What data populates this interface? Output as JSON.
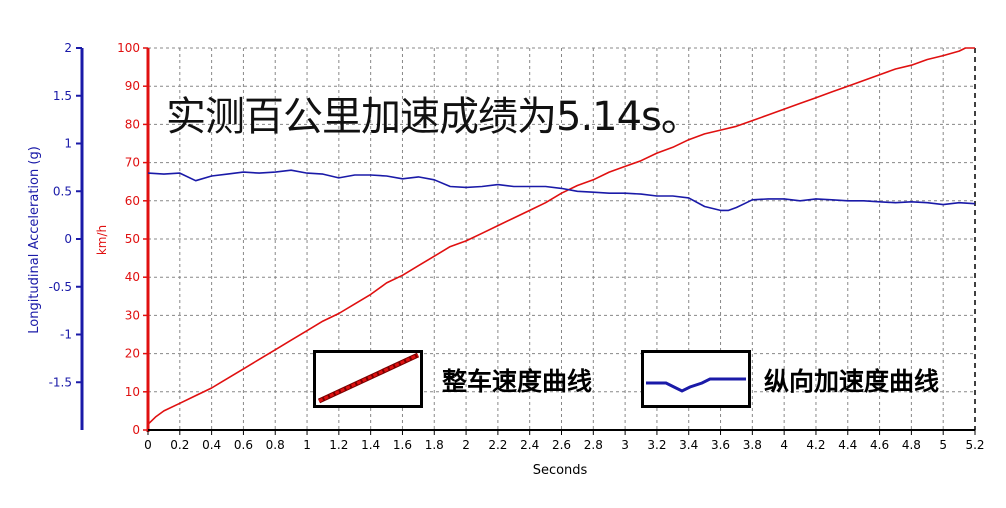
{
  "headline": "实测百公里加速成绩为5.14s。",
  "legend": {
    "speed_label": "整车速度曲线",
    "accel_label": "纵向加速度曲线"
  },
  "colors": {
    "speed": "#e01010",
    "accel": "#1a1aa8",
    "grid": "#888888",
    "left_axis": "#1a1aa8",
    "right_axis": "#e01010"
  },
  "chart_data": {
    "type": "line",
    "title": "",
    "xlabel": "Seconds",
    "ylabel_left": "Longitudinal Acceleration (g)",
    "ylabel_right": "km/h",
    "xlim": [
      0,
      5.2
    ],
    "ylim_left": [
      -2,
      2
    ],
    "ylim_right": [
      0,
      100
    ],
    "grid": true,
    "x_ticks": [
      "0",
      "0.2",
      "0.4",
      "0.6",
      "0.8",
      "1",
      "1.2",
      "1.4",
      "1.6",
      "1.8",
      "2",
      "2.2",
      "2.4",
      "2.6",
      "2.8",
      "3",
      "3.2",
      "3.4",
      "3.6",
      "3.8",
      "4",
      "4.2",
      "4.4",
      "4.6",
      "4.8",
      "5",
      "5.2"
    ],
    "y_ticks_left": [
      "2",
      "1.5",
      "1",
      "0.5",
      "0",
      "-0.5",
      "-1",
      "-1.5"
    ],
    "y_ticks_right": [
      "100",
      "90",
      "80",
      "70",
      "60",
      "50",
      "40",
      "30",
      "20",
      "10",
      "0"
    ],
    "series": [
      {
        "name": "整车速度曲线",
        "axis": "right",
        "x": [
          0,
          0.05,
          0.1,
          0.2,
          0.3,
          0.4,
          0.5,
          0.6,
          0.7,
          0.8,
          0.9,
          1.0,
          1.1,
          1.2,
          1.3,
          1.4,
          1.5,
          1.6,
          1.7,
          1.8,
          1.9,
          2.0,
          2.1,
          2.2,
          2.3,
          2.4,
          2.5,
          2.6,
          2.7,
          2.8,
          2.9,
          3.0,
          3.1,
          3.2,
          3.3,
          3.4,
          3.5,
          3.6,
          3.7,
          3.8,
          3.9,
          4.0,
          4.1,
          4.2,
          4.3,
          4.4,
          4.5,
          4.6,
          4.7,
          4.8,
          4.9,
          5.0,
          5.1,
          5.14,
          5.2
        ],
        "values": [
          1.5,
          3.5,
          5.0,
          7.0,
          9.0,
          11.0,
          13.5,
          16.0,
          18.5,
          21.0,
          23.5,
          26.0,
          28.5,
          30.5,
          33.0,
          35.5,
          38.5,
          40.5,
          43.0,
          45.5,
          48.0,
          49.5,
          51.5,
          53.5,
          55.5,
          57.5,
          59.5,
          62.0,
          64.0,
          65.5,
          67.5,
          69.0,
          70.5,
          72.5,
          74.0,
          76.0,
          77.5,
          78.5,
          79.5,
          81.0,
          82.5,
          84.0,
          85.5,
          87.0,
          88.5,
          90.0,
          91.5,
          93.0,
          94.5,
          95.5,
          97.0,
          98.0,
          99.2,
          100.0,
          100.0
        ]
      },
      {
        "name": "纵向加速度曲线",
        "axis": "left",
        "x": [
          0,
          0.1,
          0.2,
          0.3,
          0.4,
          0.5,
          0.6,
          0.7,
          0.8,
          0.9,
          1.0,
          1.1,
          1.2,
          1.3,
          1.4,
          1.5,
          1.6,
          1.7,
          1.8,
          1.9,
          2.0,
          2.1,
          2.2,
          2.3,
          2.4,
          2.5,
          2.6,
          2.7,
          2.8,
          2.9,
          3.0,
          3.1,
          3.2,
          3.3,
          3.4,
          3.5,
          3.6,
          3.65,
          3.7,
          3.75,
          3.8,
          3.9,
          4.0,
          4.1,
          4.2,
          4.3,
          4.4,
          4.5,
          4.6,
          4.7,
          4.8,
          4.9,
          5.0,
          5.1,
          5.2
        ],
        "values": [
          0.69,
          0.68,
          0.69,
          0.61,
          0.66,
          0.68,
          0.7,
          0.69,
          0.7,
          0.72,
          0.69,
          0.68,
          0.64,
          0.67,
          0.67,
          0.66,
          0.63,
          0.65,
          0.62,
          0.55,
          0.54,
          0.55,
          0.57,
          0.55,
          0.55,
          0.55,
          0.53,
          0.5,
          0.49,
          0.48,
          0.48,
          0.47,
          0.45,
          0.45,
          0.43,
          0.34,
          0.3,
          0.3,
          0.33,
          0.37,
          0.41,
          0.42,
          0.42,
          0.4,
          0.42,
          0.41,
          0.4,
          0.4,
          0.39,
          0.38,
          0.39,
          0.38,
          0.36,
          0.38,
          0.37
        ]
      }
    ]
  }
}
